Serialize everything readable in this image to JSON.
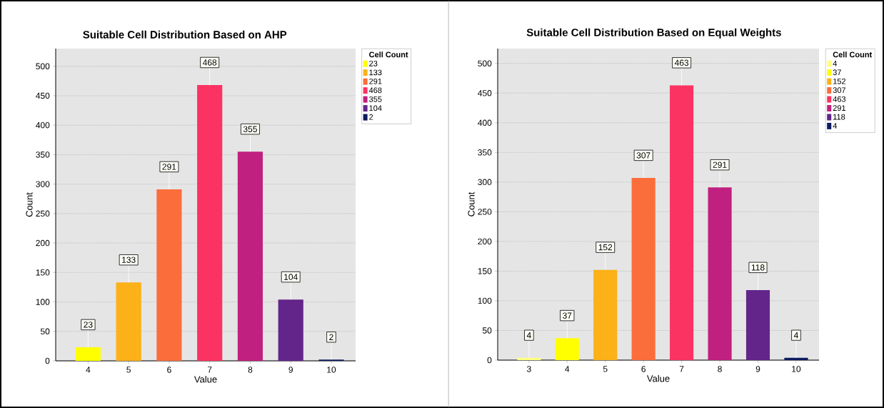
{
  "chart_data": [
    {
      "type": "bar",
      "title": "Suitable Cell Distribution Based on AHP",
      "xlabel": "Value",
      "ylabel": "Count",
      "legend_title": "Cell Count",
      "legend": "right",
      "stacked": true,
      "categories": [
        "4",
        "5",
        "6",
        "7",
        "8",
        "9",
        "10"
      ],
      "series": [
        {
          "name": "23",
          "color": "#ffff00",
          "values": [
            23,
            null,
            null,
            null,
            null,
            null,
            null
          ]
        },
        {
          "name": "133",
          "color": "#fbb117",
          "values": [
            null,
            133,
            null,
            null,
            null,
            null,
            null
          ]
        },
        {
          "name": "291",
          "color": "#fb6e3c",
          "values": [
            null,
            null,
            291,
            null,
            null,
            null,
            null
          ]
        },
        {
          "name": "468",
          "color": "#fb3362",
          "values": [
            null,
            null,
            null,
            468,
            null,
            null,
            null
          ]
        },
        {
          "name": "355",
          "color": "#c0207f",
          "values": [
            null,
            null,
            null,
            null,
            355,
            null,
            null
          ]
        },
        {
          "name": "104",
          "color": "#63258a",
          "values": [
            null,
            null,
            null,
            null,
            null,
            104,
            null
          ]
        },
        {
          "name": "2",
          "color": "#0d1a5e",
          "values": [
            null,
            null,
            null,
            null,
            null,
            null,
            2
          ]
        }
      ],
      "ylim": [
        0,
        530
      ],
      "yticks": [
        0,
        50,
        100,
        150,
        200,
        250,
        300,
        350,
        400,
        450,
        500
      ],
      "grid": "y",
      "data_labels": true
    },
    {
      "type": "bar",
      "title": "Suitable Cell Distribution Based on Equal Weights",
      "xlabel": "Value",
      "ylabel": "Count",
      "legend_title": "Cell Count",
      "legend": "right",
      "stacked": true,
      "categories": [
        "3",
        "4",
        "5",
        "6",
        "7",
        "8",
        "9",
        "10"
      ],
      "series": [
        {
          "name": "4",
          "color": "#ffff80",
          "values": [
            4,
            null,
            null,
            null,
            null,
            null,
            null,
            null
          ]
        },
        {
          "name": "37",
          "color": "#ffff00",
          "values": [
            null,
            37,
            null,
            null,
            null,
            null,
            null,
            null
          ]
        },
        {
          "name": "152",
          "color": "#fbb117",
          "values": [
            null,
            null,
            152,
            null,
            null,
            null,
            null,
            null
          ]
        },
        {
          "name": "307",
          "color": "#fb6e3c",
          "values": [
            null,
            null,
            null,
            307,
            null,
            null,
            null,
            null
          ]
        },
        {
          "name": "463",
          "color": "#fb3362",
          "values": [
            null,
            null,
            null,
            null,
            463,
            null,
            null,
            null
          ]
        },
        {
          "name": "291",
          "color": "#c0207f",
          "values": [
            null,
            null,
            null,
            null,
            null,
            291,
            null,
            null
          ]
        },
        {
          "name": "118",
          "color": "#63258a",
          "values": [
            null,
            null,
            null,
            null,
            null,
            null,
            118,
            null
          ]
        },
        {
          "name": "4",
          "color": "#0d1a5e",
          "values": [
            null,
            null,
            null,
            null,
            null,
            null,
            null,
            4
          ]
        }
      ],
      "ylim": [
        0,
        525
      ],
      "yticks": [
        0,
        50,
        100,
        150,
        200,
        250,
        300,
        350,
        400,
        450,
        500
      ],
      "grid": "y",
      "data_labels": true
    }
  ]
}
